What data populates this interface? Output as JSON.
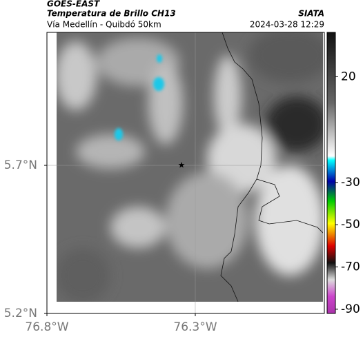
{
  "header": {
    "source": "GOES-EAST",
    "title": "Temperatura de Brillo CH13",
    "subtitle": "Vía Medellín - Quibdó 50km",
    "credit": "SIATA",
    "timestamp": "2024-03-28 12:29"
  },
  "map": {
    "lonlim": [
      -76.8,
      -75.865
    ],
    "latlim": [
      5.2,
      6.149
    ],
    "lon_ticks": [
      {
        "value": -76.8,
        "label": "76.8°W"
      },
      {
        "value": -76.3,
        "label": "76.3°W"
      }
    ],
    "lat_ticks": [
      {
        "value": 5.7,
        "label": "5.7°N"
      },
      {
        "value": 5.2,
        "label": "5.2°N"
      }
    ],
    "grid": true
  },
  "colorbar": {
    "lim": [
      41,
      -92
    ],
    "ticks": [
      20,
      -30,
      -50,
      -70,
      -90
    ]
  }
}
